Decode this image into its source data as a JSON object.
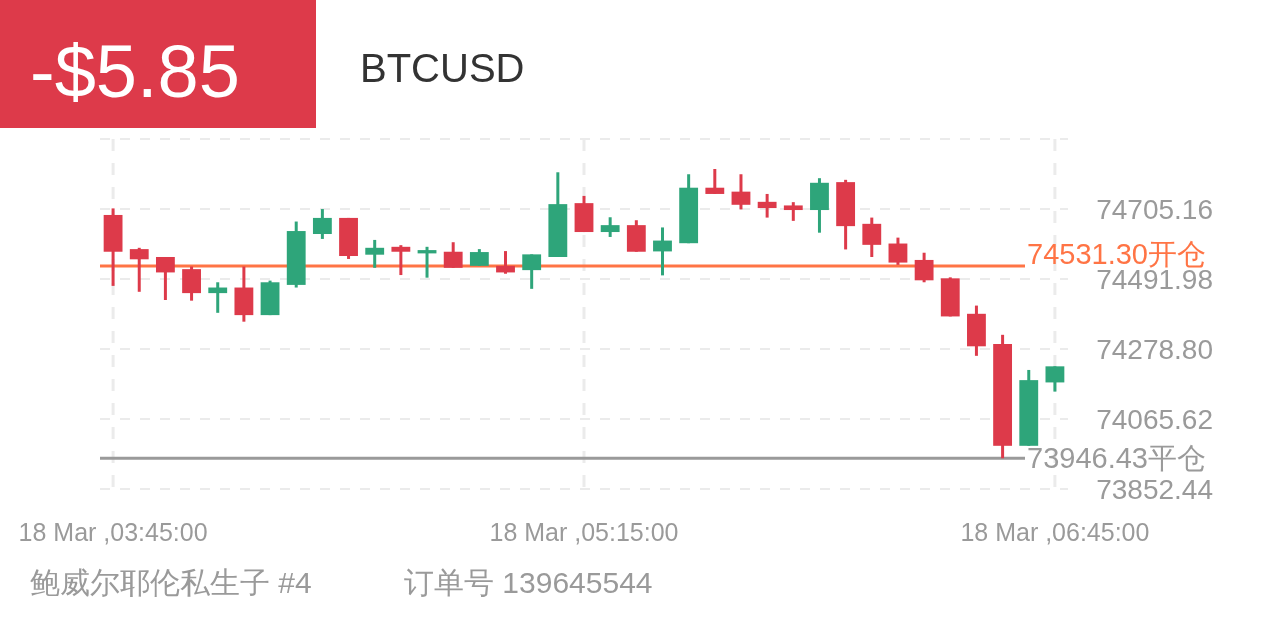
{
  "chart_data": {
    "type": "candlestick",
    "title": "BTCUSD",
    "subtitle": "-$5.85",
    "annotations": [
      "鲍威尔耶伦私生子 #4",
      "订单号 139645544"
    ],
    "categories": [
      "18 Mar ,03:45:00",
      null,
      null,
      null,
      null,
      null,
      null,
      null,
      null,
      null,
      null,
      null,
      null,
      null,
      null,
      null,
      null,
      null,
      "18 Mar ,05:15:00",
      null,
      null,
      null,
      null,
      null,
      null,
      null,
      null,
      null,
      null,
      null,
      null,
      null,
      null,
      null,
      null,
      null,
      "18 Mar ,06:45:00"
    ],
    "ohlc": [
      [
        74687,
        74707,
        74471,
        74575
      ],
      [
        74583,
        74587,
        74453,
        74552
      ],
      [
        74559,
        74559,
        74428,
        74512
      ],
      [
        74522,
        74530,
        74426,
        74449
      ],
      [
        74449,
        74482,
        74389,
        74466
      ],
      [
        74466,
        74530,
        74362,
        74382
      ],
      [
        74382,
        74487,
        74382,
        74482
      ],
      [
        74474,
        74667,
        74466,
        74638
      ],
      [
        74629,
        74705,
        74614,
        74678
      ],
      [
        74678,
        74678,
        74553,
        74562
      ],
      [
        74566,
        74611,
        74526,
        74587
      ],
      [
        74590,
        74595,
        74504,
        74575
      ],
      [
        74570,
        74590,
        74496,
        74580
      ],
      [
        74575,
        74604,
        74526,
        74526
      ],
      [
        74532,
        74583,
        74532,
        74574
      ],
      [
        74532,
        74577,
        74508,
        74512
      ],
      [
        74519,
        74567,
        74462,
        74567
      ],
      [
        74559,
        74817,
        74559,
        74720
      ],
      [
        74723,
        74745,
        74635,
        74635
      ],
      [
        74635,
        74680,
        74620,
        74656
      ],
      [
        74656,
        74671,
        74575,
        74575
      ],
      [
        74576,
        74649,
        74503,
        74609
      ],
      [
        74601,
        74811,
        74601,
        74770
      ],
      [
        74770,
        74827,
        74751,
        74751
      ],
      [
        74758,
        74811,
        74704,
        74718
      ],
      [
        74727,
        74751,
        74679,
        74708
      ],
      [
        74716,
        74726,
        74669,
        74702
      ],
      [
        74702,
        74799,
        74633,
        74785
      ],
      [
        74787,
        74794,
        74582,
        74653
      ],
      [
        74660,
        74679,
        74559,
        74596
      ],
      [
        74600,
        74618,
        74535,
        74542
      ],
      [
        74550,
        74572,
        74482,
        74488
      ],
      [
        74494,
        74497,
        74378,
        74378
      ],
      [
        74386,
        74411,
        74258,
        74287
      ],
      [
        74294,
        74322,
        73946,
        73984
      ],
      [
        73984,
        74215,
        73984,
        74184
      ],
      [
        74177,
        74226,
        74149,
        74226
      ]
    ],
    "colors": [
      "#dd3a4a",
      "#dd3a4a",
      "#dd3a4a",
      "#dd3a4a",
      "#2ea57a",
      "#dd3a4a",
      "#2ea57a",
      "#2ea57a",
      "#2ea57a",
      "#dd3a4a",
      "#2ea57a",
      "#dd3a4a",
      "#2ea57a",
      "#dd3a4a",
      "#2ea57a",
      "#dd3a4a",
      "#2ea57a",
      "#2ea57a",
      "#dd3a4a",
      "#2ea57a",
      "#dd3a4a",
      "#2ea57a",
      "#2ea57a",
      "#dd3a4a",
      "#dd3a4a",
      "#dd3a4a",
      "#dd3a4a",
      "#2ea57a",
      "#dd3a4a",
      "#dd3a4a",
      "#dd3a4a",
      "#dd3a4a",
      "#dd3a4a",
      "#dd3a4a",
      "#dd3a4a",
      "#2ea57a",
      "#2ea57a"
    ],
    "ylim": [
      73852.44,
      74918.34
    ],
    "yticks": [
      73852.44,
      74065.62,
      {
        "value": 74278.8,
        "label": "74278.80"
      },
      74491.98,
      74705.16
    ],
    "ref_lines": [
      {
        "axis": "y",
        "value": 74531.3,
        "label": "74531.30开仓",
        "color": "#ff7445"
      },
      {
        "axis": "y",
        "value": 73946.43,
        "label": "73946.43平仓",
        "color": "#9a9a9a"
      }
    ],
    "grid": true
  }
}
